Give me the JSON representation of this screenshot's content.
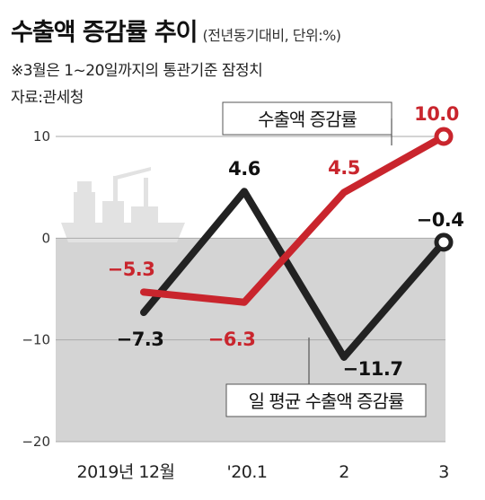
{
  "header": {
    "title": "수출액 증감률 추이",
    "subtitle": "(전년동기대비, 단위:%)",
    "note": "※3월은 1~20일까지의 통관기준 잠정치",
    "source": "자료:관세청"
  },
  "colors": {
    "series_red": "#c9252d",
    "series_black": "#222222",
    "plot_bg_negative": "#d4d4d4",
    "grid": "#aaaaaa",
    "ship": "#e2e2e2"
  },
  "chart_data": {
    "type": "line",
    "categories": [
      "2019년 12월",
      "'20.1",
      "2",
      "3"
    ],
    "yticks": [
      "10",
      "0",
      "−10",
      "−20"
    ],
    "ylim": [
      -20,
      10
    ],
    "grid": true,
    "series": [
      {
        "name": "수출액 증감률",
        "values": [
          -5.3,
          -6.3,
          4.5,
          10.0
        ],
        "labels": [
          "−5.3",
          "−6.3",
          "4.5",
          "10.0"
        ],
        "color": "#c9252d"
      },
      {
        "name": "일 평균 수출액 증감률",
        "values": [
          -7.3,
          4.6,
          -11.7,
          -0.4
        ],
        "labels": [
          "−7.3",
          "4.6",
          "−11.7",
          "−0.4"
        ],
        "color": "#222222"
      }
    ]
  }
}
